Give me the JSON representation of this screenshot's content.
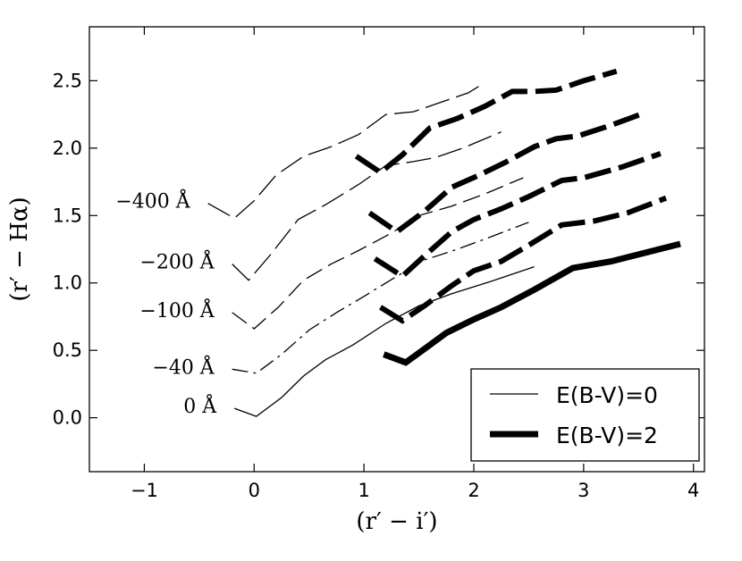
{
  "chart_data": {
    "type": "line",
    "xlabel": "(r′ − i′)",
    "ylabel": "(r′ − Hα)",
    "xlim": [
      -1.5,
      4.1
    ],
    "ylim": [
      -0.4,
      2.9
    ],
    "xticks": [
      -1,
      0,
      1,
      2,
      3,
      4
    ],
    "yticks": [
      0.0,
      0.5,
      1.0,
      1.5,
      2.0,
      2.5
    ],
    "ytick_labels": [
      "0.0",
      "0.5",
      "1.0",
      "1.5",
      "2.0",
      "2.5"
    ],
    "xtick_labels": [
      "−1",
      "0",
      "1",
      "2",
      "3",
      "4"
    ],
    "grid": false,
    "legend_position": "bottom-right",
    "legend": [
      {
        "label": "E(B-V)=0",
        "style": "thin"
      },
      {
        "label": "E(B-V)=2",
        "style": "thick"
      }
    ],
    "ew_labels": [
      "0 Å",
      "−40 Å",
      "−100 Å",
      "−200 Å",
      "−400 Å"
    ],
    "series": [
      {
        "ew": "0 Å",
        "reddening": "E(B-V)=0",
        "dash": "solid",
        "x": [
          -0.18,
          0.02,
          0.25,
          0.45,
          0.65,
          0.9,
          1.2,
          1.5,
          1.8,
          2.15,
          2.55
        ],
        "y": [
          0.07,
          0.01,
          0.15,
          0.31,
          0.43,
          0.54,
          0.7,
          0.83,
          0.92,
          1.01,
          1.12
        ]
      },
      {
        "ew": "−40 Å",
        "reddening": "E(B-V)=0",
        "dash": "dashdot",
        "x": [
          -0.2,
          0.02,
          0.25,
          0.5,
          0.75,
          1.0,
          1.3,
          1.55,
          1.85,
          2.15,
          2.5
        ],
        "y": [
          0.36,
          0.33,
          0.47,
          0.65,
          0.78,
          0.9,
          1.05,
          1.17,
          1.25,
          1.34,
          1.45
        ]
      },
      {
        "ew": "−100 Å",
        "reddening": "E(B-V)=0",
        "dash": "medium",
        "x": [
          -0.2,
          0.0,
          0.22,
          0.45,
          0.7,
          0.95,
          1.25,
          1.5,
          1.8,
          2.1,
          2.45
        ],
        "y": [
          0.78,
          0.66,
          0.82,
          1.02,
          1.14,
          1.24,
          1.37,
          1.5,
          1.57,
          1.66,
          1.78
        ]
      },
      {
        "ew": "−200 Å",
        "reddening": "E(B-V)=0",
        "dash": "long",
        "x": [
          -0.2,
          -0.05,
          0.15,
          0.4,
          0.65,
          0.95,
          1.2,
          1.45,
          1.65,
          1.9,
          2.25
        ],
        "y": [
          1.14,
          1.02,
          1.21,
          1.47,
          1.58,
          1.73,
          1.87,
          1.9,
          1.93,
          2.0,
          2.12
        ]
      },
      {
        "ew": "−400 Å",
        "reddening": "E(B-V)=0",
        "dash": "long",
        "x": [
          -0.42,
          -0.18,
          0.0,
          0.2,
          0.45,
          0.7,
          0.95,
          1.2,
          1.45,
          1.7,
          1.95,
          2.05
        ],
        "y": [
          1.59,
          1.48,
          1.61,
          1.8,
          1.94,
          2.01,
          2.1,
          2.25,
          2.27,
          2.34,
          2.41,
          2.46
        ]
      },
      {
        "ew": "0 Å",
        "reddening": "E(B-V)=2",
        "dash": "solid",
        "x": [
          1.18,
          1.38,
          1.55,
          1.75,
          2.0,
          2.25,
          2.55,
          2.9,
          3.25,
          3.88
        ],
        "y": [
          0.47,
          0.41,
          0.51,
          0.63,
          0.73,
          0.82,
          0.95,
          1.11,
          1.16,
          1.29
        ]
      },
      {
        "ew": "−40 Å",
        "reddening": "E(B-V)=2",
        "dash": "thickdash",
        "x": [
          1.15,
          1.35,
          1.55,
          1.8,
          2.0,
          2.25,
          2.5,
          2.8,
          3.1,
          3.4,
          3.75
        ],
        "y": [
          0.82,
          0.72,
          0.83,
          0.98,
          1.09,
          1.16,
          1.28,
          1.43,
          1.46,
          1.52,
          1.63
        ]
      },
      {
        "ew": "−100 Å",
        "reddening": "E(B-V)=2",
        "dash": "thickdash",
        "x": [
          1.1,
          1.35,
          1.55,
          1.8,
          2.0,
          2.25,
          2.5,
          2.8,
          3.0,
          3.35,
          3.7
        ],
        "y": [
          1.18,
          1.05,
          1.2,
          1.38,
          1.47,
          1.55,
          1.64,
          1.76,
          1.78,
          1.86,
          1.96
        ]
      },
      {
        "ew": "−200 Å",
        "reddening": "E(B-V)=2",
        "dash": "thickdash",
        "x": [
          1.05,
          1.3,
          1.55,
          1.8,
          2.05,
          2.3,
          2.55,
          2.75,
          2.95,
          3.25,
          3.55
        ],
        "y": [
          1.52,
          1.38,
          1.53,
          1.71,
          1.8,
          1.9,
          2.01,
          2.07,
          2.09,
          2.17,
          2.26
        ]
      },
      {
        "ew": "−400 Å",
        "reddening": "E(B-V)=2",
        "dash": "thickdash",
        "x": [
          0.93,
          1.15,
          1.35,
          1.6,
          1.85,
          2.1,
          2.35,
          2.55,
          2.75,
          3.0,
          3.3
        ],
        "y": [
          1.94,
          1.82,
          1.95,
          2.15,
          2.22,
          2.31,
          2.42,
          2.42,
          2.43,
          2.5,
          2.57
        ]
      }
    ]
  }
}
